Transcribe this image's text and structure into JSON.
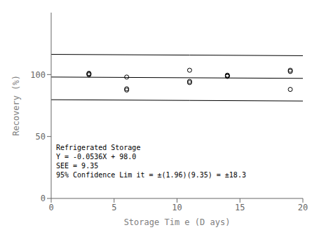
{
  "chart_data": {
    "type": "scatter",
    "xlabel": "Storage Tim e (D ays)",
    "ylabel": "Recovery (%)",
    "annotations": [
      "Refrigerated Storage",
      "Y = -0.0536X + 98.0",
      "SEE = 9.35",
      "95% Confidence Lim it = ±(1.96)(9.35) = ±18.3"
    ],
    "xlim": [
      0,
      20
    ],
    "ylim": [
      0,
      150
    ],
    "xticks": [
      0,
      5,
      10,
      15,
      20
    ],
    "yticks": [
      0,
      50,
      100
    ],
    "grid": false,
    "series": [
      {
        "type": "scatter",
        "marker": "o",
        "color": "#000000",
        "x": [
          3,
          3,
          3,
          6,
          6,
          6,
          11,
          11,
          11,
          14,
          14,
          14,
          19,
          19,
          19
        ],
        "values": [
          99.8,
          100.5,
          101.0,
          98.0,
          88.5,
          87.5,
          103.5,
          94.5,
          93.5,
          99.5,
          99.0,
          98.5,
          103.5,
          102.5,
          88.0
        ]
      },
      {
        "type": "line",
        "color": "#000000",
        "x": [
          0,
          20
        ],
        "values": [
          98.0,
          96.928
        ]
      },
      {
        "type": "line",
        "color": "#000000",
        "x": [
          0,
          11
        ],
        "values": [
          116.3,
          115.7104
        ]
      },
      {
        "type": "line",
        "color": "#000000",
        "x": [
          0,
          11
        ],
        "values": [
          79.7,
          79.1104
        ]
      },
      {
        "type": "line",
        "color": "#000000",
        "x": [
          11,
          20
        ],
        "values": [
          115.7104,
          115.228
        ]
      },
      {
        "type": "line",
        "color": "#000000",
        "x": [
          11,
          20
        ],
        "values": [
          79.1104,
          78.628
        ]
      }
    ]
  }
}
